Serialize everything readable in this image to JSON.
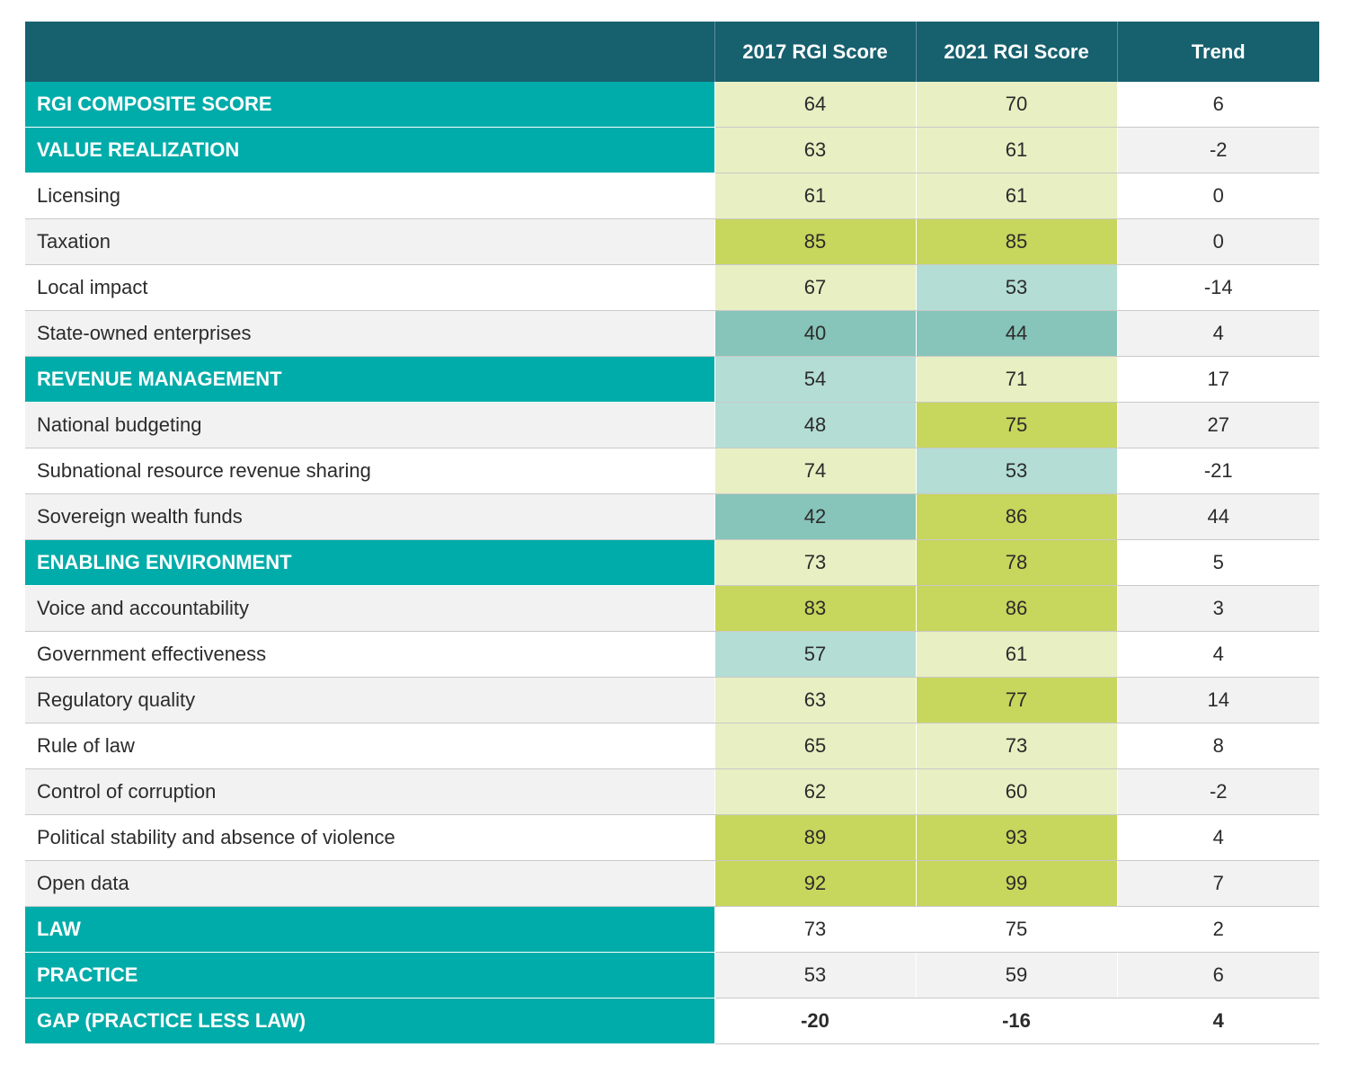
{
  "colors": {
    "header_bg": "#17606e",
    "section_bg": "#00aca9",
    "alt_row_bg": "#f2f2f2",
    "score_low": "#87c4b9",
    "score_lowmid": "#b3ddd5",
    "score_mid": "#e8efc2",
    "score_high": "#c7d65c"
  },
  "chart_data": {
    "type": "table",
    "columns": [
      "",
      "2017 RGI Score",
      "2021 RGI Score",
      "Trend"
    ],
    "rows": [
      {
        "label": "RGI COMPOSITE SCORE",
        "kind": "section",
        "v2017": "64",
        "v2021": "70",
        "trend": "6",
        "c2017": "mid",
        "c2021": "mid"
      },
      {
        "label": "VALUE REALIZATION",
        "kind": "section",
        "v2017": "63",
        "v2021": "61",
        "trend": "-2",
        "c2017": "mid",
        "c2021": "mid"
      },
      {
        "label": "Licensing",
        "kind": "sub",
        "v2017": "61",
        "v2021": "61",
        "trend": "0",
        "c2017": "mid",
        "c2021": "mid"
      },
      {
        "label": "Taxation",
        "kind": "sub",
        "v2017": "85",
        "v2021": "85",
        "trend": "0",
        "c2017": "high",
        "c2021": "high"
      },
      {
        "label": "Local impact",
        "kind": "sub",
        "v2017": "67",
        "v2021": "53",
        "trend": "-14",
        "c2017": "mid",
        "c2021": "lowmid"
      },
      {
        "label": "State-owned enterprises",
        "kind": "sub",
        "v2017": "40",
        "v2021": "44",
        "trend": "4",
        "c2017": "low",
        "c2021": "low"
      },
      {
        "label": "REVENUE MANAGEMENT",
        "kind": "section",
        "v2017": "54",
        "v2021": "71",
        "trend": "17",
        "c2017": "lowmid",
        "c2021": "mid"
      },
      {
        "label": "National budgeting",
        "kind": "sub",
        "v2017": "48",
        "v2021": "75",
        "trend": "27",
        "c2017": "lowmid",
        "c2021": "high"
      },
      {
        "label": "Subnational resource revenue sharing",
        "kind": "sub",
        "v2017": "74",
        "v2021": "53",
        "trend": "-21",
        "c2017": "mid",
        "c2021": "lowmid"
      },
      {
        "label": "Sovereign wealth funds",
        "kind": "sub",
        "v2017": "42",
        "v2021": "86",
        "trend": "44",
        "c2017": "low",
        "c2021": "high"
      },
      {
        "label": "ENABLING ENVIRONMENT",
        "kind": "section",
        "v2017": "73",
        "v2021": "78",
        "trend": "5",
        "c2017": "mid",
        "c2021": "high"
      },
      {
        "label": "Voice and accountability",
        "kind": "sub",
        "v2017": "83",
        "v2021": "86",
        "trend": "3",
        "c2017": "high",
        "c2021": "high"
      },
      {
        "label": "Government effectiveness",
        "kind": "sub",
        "v2017": "57",
        "v2021": "61",
        "trend": "4",
        "c2017": "lowmid",
        "c2021": "mid"
      },
      {
        "label": "Regulatory quality",
        "kind": "sub",
        "v2017": "63",
        "v2021": "77",
        "trend": "14",
        "c2017": "mid",
        "c2021": "high"
      },
      {
        "label": "Rule of law",
        "kind": "sub",
        "v2017": "65",
        "v2021": "73",
        "trend": "8",
        "c2017": "mid",
        "c2021": "mid"
      },
      {
        "label": "Control of corruption",
        "kind": "sub",
        "v2017": "62",
        "v2021": "60",
        "trend": "-2",
        "c2017": "mid",
        "c2021": "mid"
      },
      {
        "label": "Political stability and absence of violence",
        "kind": "sub",
        "v2017": "89",
        "v2021": "93",
        "trend": "4",
        "c2017": "high",
        "c2021": "high"
      },
      {
        "label": "Open data",
        "kind": "sub",
        "v2017": "92",
        "v2021": "99",
        "trend": "7",
        "c2017": "high",
        "c2021": "high"
      },
      {
        "label": "LAW",
        "kind": "section",
        "v2017": "73",
        "v2021": "75",
        "trend": "2",
        "c2017": "none",
        "c2021": "none"
      },
      {
        "label": "PRACTICE",
        "kind": "section",
        "v2017": "53",
        "v2021": "59",
        "trend": "6",
        "c2017": "none",
        "c2021": "none"
      },
      {
        "label": "GAP (PRACTICE LESS LAW)",
        "kind": "section",
        "v2017": "-20",
        "v2021": "-16",
        "trend": "4",
        "c2017": "none",
        "c2021": "none",
        "bold": true
      }
    ]
  }
}
